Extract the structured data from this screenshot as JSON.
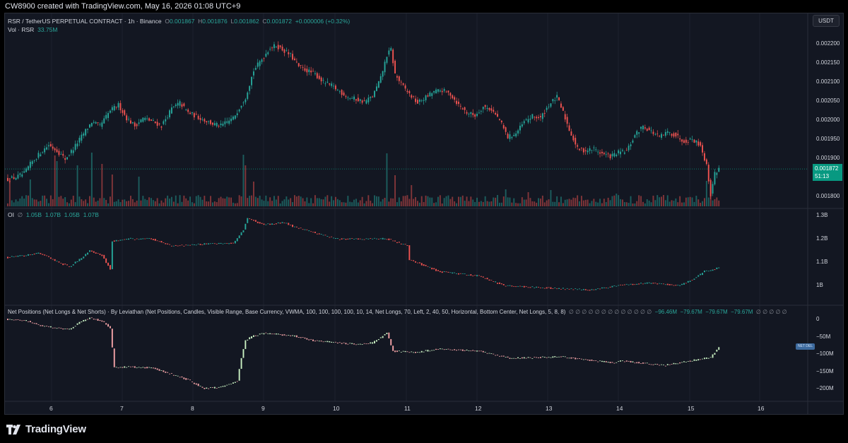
{
  "caption": "CW8900 created with TradingView.com, May 16, 2026 01:08 UTC+9",
  "brand": {
    "logo_text": "TradingView",
    "icon": "tradingview-logo-icon"
  },
  "symbol_legend": {
    "title": "RSR / TetherUS PERPETUAL CONTRACT · 1h · Binance",
    "o_label": "O",
    "o_value": "0.001867",
    "h_label": "H",
    "h_value": "0.001876",
    "l_label": "L",
    "l_value": "0.001862",
    "c_label": "C",
    "c_value": "0.001872",
    "change": "+0.000006 (+0.32%)"
  },
  "volume_legend": {
    "label": "Vol · RSR",
    "value": "33.75M"
  },
  "oi_legend": {
    "label": "OI",
    "values": [
      "1.05B",
      "1.07B",
      "1.05B",
      "1.07B"
    ]
  },
  "net_legend": {
    "text": "Net Positions (Net Longs & Net Shorts) · By Leviathan (Net Positions, Candles, Visible Range, Base Currency, VWMA, 100, 100, 100, 100, 10, 14, Net Longs, 70, Left, 2, 40, 50, Horizontal, Bottom Center, Net Longs, 5, 8, 8)",
    "null_marks": "∅ ∅ ∅ ∅ ∅ ∅ ∅ ∅ ∅ ∅ ∅ ∅ ∅",
    "values": [
      "−96.46M",
      "−79.67M",
      "−79.67M",
      "−79.67M"
    ],
    "trailing_marks": "∅ ∅ ∅ ∅ ∅"
  },
  "currency_button": "USDT",
  "price_badge": {
    "price": "0.001872",
    "countdown": "51:13"
  },
  "net_badge": "NET DEL",
  "colors": {
    "up": "#26a69a",
    "down": "#ef5350",
    "bg": "#131722",
    "grid": "#1e222d",
    "net_up": "#c9f0c2",
    "net_down": "#f4a3a7"
  },
  "chart_data": [
    {
      "type": "candlestick",
      "pane": "price",
      "y_ticks": [
        "0.002200",
        "0.002150",
        "0.002100",
        "0.002050",
        "0.002000",
        "0.001950",
        "0.001900",
        "0.001800"
      ],
      "ylim": [
        0.00177,
        0.00223
      ],
      "x_ticks": [
        "6",
        "7",
        "8",
        "9",
        "10",
        "11",
        "12",
        "13",
        "14",
        "15",
        "16"
      ],
      "close_path": [
        [
          0,
          0.001845
        ],
        [
          4,
          0.00185
        ],
        [
          8,
          0.00186
        ],
        [
          11,
          0.001885
        ],
        [
          16,
          0.001915
        ],
        [
          20,
          0.001935
        ],
        [
          24,
          0.00192
        ],
        [
          28,
          0.001898
        ],
        [
          32,
          0.001925
        ],
        [
          37,
          0.001965
        ],
        [
          41,
          0.001995
        ],
        [
          45,
          0.001985
        ],
        [
          50,
          0.002025
        ],
        [
          54,
          0.00204
        ],
        [
          58,
          0.002005
        ],
        [
          62,
          0.001985
        ],
        [
          66,
          0.002005
        ],
        [
          70,
          0.001998
        ],
        [
          75,
          0.001985
        ],
        [
          80,
          0.00203
        ],
        [
          84,
          0.002045
        ],
        [
          88,
          0.00202
        ],
        [
          92,
          0.00201
        ],
        [
          96,
          0.002
        ],
        [
          100,
          0.00199
        ],
        [
          104,
          0.001985
        ],
        [
          110,
          0.002005
        ],
        [
          116,
          0.00206
        ],
        [
          120,
          0.00213
        ],
        [
          124,
          0.00216
        ],
        [
          128,
          0.00219
        ],
        [
          131,
          0.002195
        ],
        [
          134,
          0.002185
        ],
        [
          138,
          0.00217
        ],
        [
          142,
          0.00214
        ],
        [
          146,
          0.00213
        ],
        [
          150,
          0.00212
        ],
        [
          154,
          0.0021
        ],
        [
          158,
          0.00209
        ],
        [
          162,
          0.002075
        ],
        [
          166,
          0.00206
        ],
        [
          170,
          0.002055
        ],
        [
          174,
          0.002048
        ],
        [
          178,
          0.002062
        ],
        [
          182,
          0.00211
        ],
        [
          185,
          0.00217
        ],
        [
          187,
          0.002185
        ],
        [
          189,
          0.00212
        ],
        [
          192,
          0.002095
        ],
        [
          196,
          0.002068
        ],
        [
          200,
          0.002045
        ],
        [
          204,
          0.00206
        ],
        [
          208,
          0.002075
        ],
        [
          212,
          0.002078
        ],
        [
          216,
          0.002068
        ],
        [
          220,
          0.00204
        ],
        [
          224,
          0.00202
        ],
        [
          228,
          0.002012
        ],
        [
          232,
          0.002035
        ],
        [
          236,
          0.002028
        ],
        [
          240,
          0.002
        ],
        [
          244,
          0.001955
        ],
        [
          248,
          0.001965
        ],
        [
          252,
          0.001995
        ],
        [
          256,
          0.00201
        ],
        [
          260,
          0.002005
        ],
        [
          264,
          0.00204
        ],
        [
          268,
          0.00206
        ],
        [
          271,
          0.00202
        ],
        [
          274,
          0.001975
        ],
        [
          278,
          0.001925
        ],
        [
          282,
          0.00192
        ],
        [
          286,
          0.001925
        ],
        [
          290,
          0.001912
        ],
        [
          294,
          0.001905
        ],
        [
          298,
          0.001915
        ],
        [
          302,
          0.001918
        ],
        [
          306,
          0.00196
        ],
        [
          310,
          0.001985
        ],
        [
          314,
          0.00197
        ],
        [
          318,
          0.001955
        ],
        [
          322,
          0.001968
        ],
        [
          326,
          0.00196
        ],
        [
          330,
          0.001945
        ],
        [
          334,
          0.00195
        ],
        [
          338,
          0.001935
        ],
        [
          341,
          0.00188
        ],
        [
          343,
          0.001805
        ],
        [
          345,
          0.00186
        ],
        [
          347,
          0.001872
        ]
      ]
    },
    {
      "type": "bar",
      "pane": "volume",
      "spike_bars": [
        [
          1,
          40
        ],
        [
          11,
          38
        ],
        [
          23,
          72
        ],
        [
          24,
          64
        ],
        [
          34,
          58
        ],
        [
          41,
          76
        ],
        [
          46,
          60
        ],
        [
          51,
          45
        ],
        [
          64,
          42
        ],
        [
          115,
          73
        ],
        [
          116,
          58
        ],
        [
          120,
          35
        ],
        [
          185,
          75
        ],
        [
          189,
          44
        ],
        [
          197,
          30
        ],
        [
          243,
          24
        ],
        [
          254,
          20
        ],
        [
          265,
          23
        ],
        [
          297,
          18
        ],
        [
          320,
          16
        ],
        [
          341,
          36
        ],
        [
          343,
          28
        ]
      ]
    },
    {
      "type": "candlestick",
      "pane": "open_interest",
      "y_ticks": [
        "1.3B",
        "1.2B",
        "1.1B",
        "1B"
      ],
      "ylim": [
        0.96,
        1.33
      ],
      "close_path": [
        [
          0,
          1.12
        ],
        [
          10,
          1.13
        ],
        [
          15,
          1.14
        ],
        [
          22,
          1.11
        ],
        [
          30,
          1.08
        ],
        [
          35,
          1.11
        ],
        [
          40,
          1.15
        ],
        [
          46,
          1.13
        ],
        [
          50,
          1.07
        ],
        [
          51,
          1.19
        ],
        [
          60,
          1.2
        ],
        [
          70,
          1.2
        ],
        [
          80,
          1.17
        ],
        [
          100,
          1.18
        ],
        [
          110,
          1.18
        ],
        [
          115,
          1.24
        ],
        [
          117,
          1.29
        ],
        [
          125,
          1.26
        ],
        [
          135,
          1.27
        ],
        [
          140,
          1.25
        ],
        [
          160,
          1.2
        ],
        [
          185,
          1.2
        ],
        [
          195,
          1.17
        ],
        [
          196,
          1.11
        ],
        [
          205,
          1.08
        ],
        [
          210,
          1.06
        ],
        [
          230,
          1.04
        ],
        [
          242,
          1.0
        ],
        [
          262,
          0.99
        ],
        [
          285,
          0.98
        ],
        [
          297,
          1.0
        ],
        [
          312,
          1.01
        ],
        [
          328,
          1.0
        ],
        [
          335,
          1.03
        ],
        [
          340,
          1.06
        ],
        [
          345,
          1.07
        ],
        [
          347,
          1.08
        ]
      ]
    },
    {
      "type": "candlestick",
      "pane": "net_positions",
      "y_ticks": [
        "0",
        "−50M",
        "−100M",
        "−150M",
        "−200M"
      ],
      "ylim": [
        -230,
        20
      ],
      "close_path": [
        [
          0,
          0
        ],
        [
          10,
          -5
        ],
        [
          16,
          -18
        ],
        [
          24,
          -25
        ],
        [
          30,
          -28
        ],
        [
          35,
          -10
        ],
        [
          40,
          5
        ],
        [
          46,
          -5
        ],
        [
          50,
          -25
        ],
        [
          52,
          -140
        ],
        [
          60,
          -137
        ],
        [
          70,
          -140
        ],
        [
          78,
          -155
        ],
        [
          88,
          -175
        ],
        [
          96,
          -200
        ],
        [
          104,
          -195
        ],
        [
          112,
          -178
        ],
        [
          114,
          -110
        ],
        [
          116,
          -60
        ],
        [
          120,
          -48
        ],
        [
          125,
          -40
        ],
        [
          140,
          -48
        ],
        [
          150,
          -62
        ],
        [
          170,
          -72
        ],
        [
          178,
          -68
        ],
        [
          185,
          -40
        ],
        [
          188,
          -92
        ],
        [
          200,
          -95
        ],
        [
          210,
          -85
        ],
        [
          230,
          -92
        ],
        [
          245,
          -112
        ],
        [
          270,
          -108
        ],
        [
          282,
          -117
        ],
        [
          295,
          -125
        ],
        [
          300,
          -120
        ],
        [
          320,
          -133
        ],
        [
          328,
          -125
        ],
        [
          338,
          -115
        ],
        [
          343,
          -110
        ],
        [
          347,
          -80
        ]
      ]
    }
  ]
}
